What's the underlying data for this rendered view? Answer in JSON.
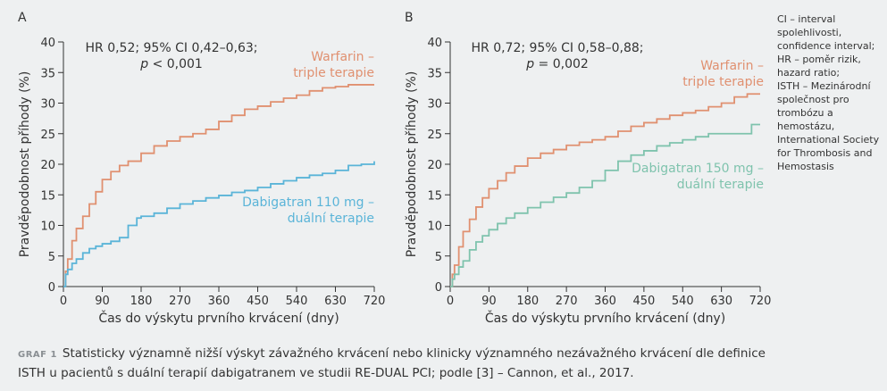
{
  "chart_data": [
    {
      "type": "line",
      "panel": "A",
      "annotation_line1": "HR 0,52; 95% CI 0,42–0,63;",
      "annotation_line2": "p < 0,001",
      "xlabel": "Čas do výskytu prvního krvácení (dny)",
      "ylabel": "Pravděpodobnost příhody (%)",
      "xlim": [
        0,
        720
      ],
      "ylim": [
        0,
        40
      ],
      "xticks": [
        0,
        90,
        180,
        270,
        360,
        450,
        540,
        630,
        720
      ],
      "yticks": [
        0,
        5,
        10,
        15,
        20,
        25,
        30,
        35,
        40
      ],
      "series": [
        {
          "name_line1": "Warfarin –",
          "name_line2": "triple terapie",
          "color": "#e09070",
          "x": [
            0,
            5,
            10,
            20,
            30,
            45,
            60,
            75,
            90,
            110,
            130,
            150,
            180,
            210,
            240,
            270,
            300,
            330,
            360,
            390,
            420,
            450,
            480,
            510,
            540,
            570,
            600,
            630,
            660,
            690,
            720
          ],
          "y": [
            0,
            2.5,
            4.5,
            7.5,
            9.5,
            11.5,
            13.5,
            15.5,
            17.5,
            18.8,
            19.8,
            20.5,
            21.8,
            23,
            23.8,
            24.5,
            25,
            25.7,
            27,
            28,
            29,
            29.5,
            30.2,
            30.8,
            31.3,
            32,
            32.5,
            32.7,
            33,
            33,
            33
          ]
        },
        {
          "name_line1": "Dabigatran 110 mg –",
          "name_line2": "duální terapie",
          "color": "#5ab4d8",
          "x": [
            0,
            5,
            10,
            20,
            30,
            45,
            60,
            75,
            90,
            110,
            130,
            150,
            170,
            180,
            210,
            240,
            270,
            300,
            330,
            360,
            390,
            420,
            450,
            480,
            510,
            540,
            570,
            600,
            630,
            660,
            690,
            720
          ],
          "y": [
            0,
            2,
            2.8,
            3.8,
            4.5,
            5.5,
            6.2,
            6.6,
            7,
            7.4,
            8,
            10,
            11.2,
            11.5,
            12,
            12.8,
            13.5,
            14,
            14.5,
            14.9,
            15.4,
            15.7,
            16.2,
            16.8,
            17.3,
            17.8,
            18.2,
            18.5,
            19,
            19.8,
            20,
            20.5
          ]
        }
      ]
    },
    {
      "type": "line",
      "panel": "B",
      "annotation_line1": "HR 0,72; 95% CI 0,58–0,88;",
      "annotation_line2": "p = 0,002",
      "xlabel": "Čas do výskytu prvního krvácení (dny)",
      "ylabel": "Pravděpodobnost příhody (%)",
      "xlim": [
        0,
        720
      ],
      "ylim": [
        0,
        40
      ],
      "xticks": [
        0,
        90,
        180,
        270,
        360,
        450,
        540,
        630,
        720
      ],
      "yticks": [
        0,
        5,
        10,
        15,
        20,
        25,
        30,
        35,
        40
      ],
      "series": [
        {
          "name_line1": "Warfarin –",
          "name_line2": "triple terapie",
          "color": "#e09070",
          "x": [
            0,
            5,
            10,
            20,
            30,
            45,
            60,
            75,
            90,
            110,
            130,
            150,
            180,
            210,
            240,
            270,
            300,
            330,
            360,
            390,
            420,
            450,
            480,
            510,
            540,
            570,
            600,
            630,
            660,
            690,
            720
          ],
          "y": [
            0,
            2,
            3.5,
            6.5,
            9,
            11,
            13,
            14.5,
            16,
            17.3,
            18.6,
            19.7,
            21,
            21.8,
            22.4,
            23.1,
            23.6,
            24,
            24.5,
            25.4,
            26.2,
            26.8,
            27.4,
            28,
            28.4,
            28.8,
            29.4,
            30,
            31,
            31.5,
            31.5
          ]
        },
        {
          "name_line1": "Dabigatran 150 mg –",
          "name_line2": "duální terapie",
          "color": "#7fc3ad",
          "x": [
            0,
            5,
            10,
            20,
            30,
            45,
            60,
            75,
            90,
            110,
            130,
            150,
            180,
            210,
            240,
            270,
            300,
            330,
            360,
            390,
            420,
            450,
            480,
            510,
            540,
            570,
            600,
            630,
            660,
            690,
            700,
            720
          ],
          "y": [
            0,
            1.2,
            2,
            3.2,
            4.2,
            6,
            7.3,
            8.3,
            9.3,
            10.3,
            11.2,
            12,
            12.9,
            13.8,
            14.6,
            15.3,
            16.2,
            17.3,
            19,
            20.5,
            21.5,
            22.2,
            23,
            23.5,
            24,
            24.5,
            25,
            25,
            25,
            25,
            26.5,
            26.5
          ]
        }
      ]
    }
  ],
  "footnote": [
    "CI – interval spolehlivosti, confidence interval; HR – poměr rizik, hazard ratio;",
    "ISTH – Mezinárodní společnost pro trombózu a hemostázu, International Society for Thrombosis and Hemostasis"
  ],
  "caption": {
    "label": "GRAF 1",
    "text": "Statisticky významně nižší výskyt závažného krvácení nebo klinicky významného nezávažného krvácení dle definice ISTH u pacientů s duální terapií dabigatranem ve studii RE-DUAL PCI; podle [3] – Cannon, et al., 2017."
  }
}
